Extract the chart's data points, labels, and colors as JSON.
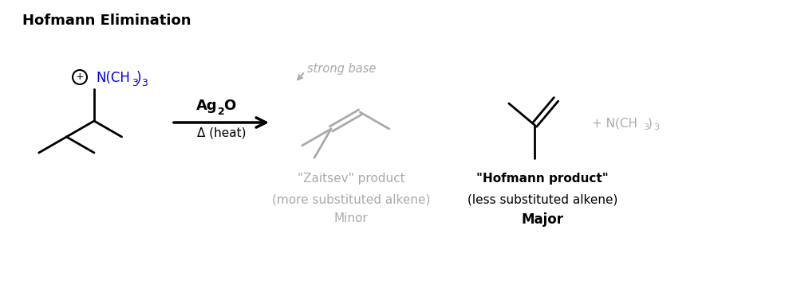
{
  "title": "Hofmann Elimination",
  "title_fontsize": 13,
  "bg_color": "#ffffff",
  "gray_color": "#aaaaaa",
  "blue_color": "#0000ee",
  "black_color": "#000000",
  "zaitsev_label": "\"Zaitsev\" product",
  "zaitsev_sub": "(more substituted alkene)",
  "zaitsev_rank": "Minor",
  "hofmann_label": "\"Hofmann product\"",
  "hofmann_sub": "(less substituted alkene)",
  "hofmann_rank": "Major",
  "reagent_top": "Ag",
  "reagent_sub": "2",
  "reagent_end": "O",
  "condition": "Δ (heat)",
  "strong_base": "strong base"
}
